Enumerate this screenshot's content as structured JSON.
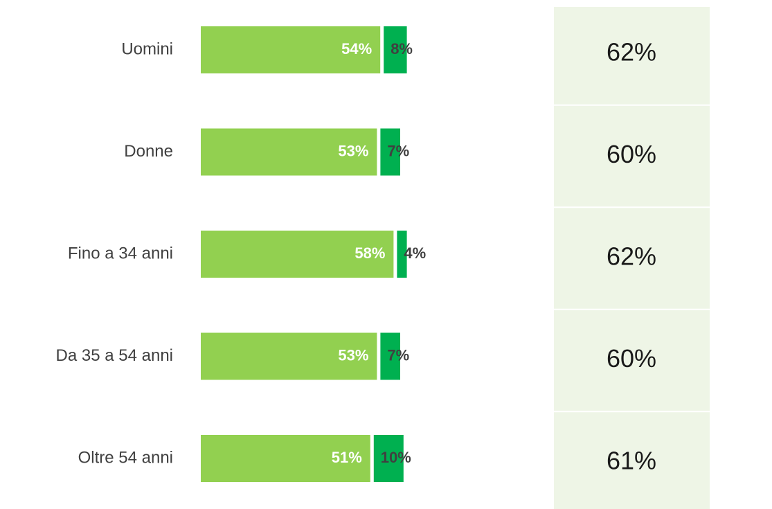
{
  "chart_data": {
    "type": "stacked-bar",
    "categories": [
      "Uomini",
      "Donne",
      "Fino a 34 anni",
      "Da 35 a 54 anni",
      "Oltre 54 anni"
    ],
    "series": [
      {
        "color": "#92d050",
        "values": [
          54,
          53,
          58,
          53,
          51
        ],
        "value_labels": [
          "54%",
          "53%",
          "58%",
          "53%",
          "51%"
        ],
        "label_color": "#ffffff"
      },
      {
        "color": "#00b050",
        "values": [
          8,
          7,
          4,
          7,
          10
        ],
        "value_labels": [
          "8%",
          "7%",
          "4%",
          "7%",
          "10%"
        ],
        "label_color": "#404040"
      }
    ],
    "totals": {
      "values": [
        62,
        60,
        62,
        60,
        61
      ],
      "value_labels": [
        "62%",
        "60%",
        "62%",
        "60%",
        "61%"
      ],
      "color": "#eef5e6"
    }
  }
}
